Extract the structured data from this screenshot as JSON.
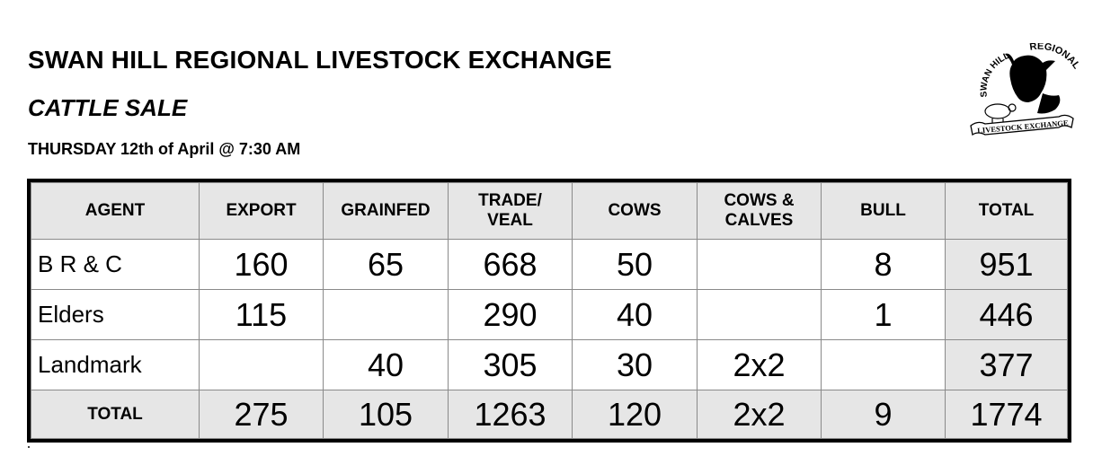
{
  "header": {
    "title": "SWAN HILL REGIONAL LIVESTOCK EXCHANGE",
    "subtitle": "CATTLE SALE",
    "date": "THURSDAY 12th of April @ 7:30 AM"
  },
  "logo": {
    "icon": "cow-head-icon",
    "text_top_left": "SWAN HILL",
    "text_top_right": "REGIONAL",
    "banner": "LIVESTOCK EXCHANGE"
  },
  "table": {
    "headers": [
      "AGENT",
      "EXPORT",
      "GRAINFED",
      "TRADE/ VEAL",
      "COWS",
      "COWS & CALVES",
      "BULL",
      "TOTAL"
    ],
    "rows": [
      [
        "B R & C",
        "160",
        "65",
        "668",
        "50",
        "",
        "8",
        "951"
      ],
      [
        "Elders",
        "115",
        "",
        "290",
        "40",
        "",
        "1",
        "446"
      ],
      [
        "Landmark",
        "",
        "40",
        "305",
        "30",
        "2x2",
        "",
        "377"
      ]
    ],
    "total_row": [
      "TOTAL",
      "275",
      "105",
      "1263",
      "120",
      "2x2",
      "9",
      "1774"
    ]
  },
  "colors": {
    "header_fill": "#e6e6e6",
    "border": "#000000"
  }
}
